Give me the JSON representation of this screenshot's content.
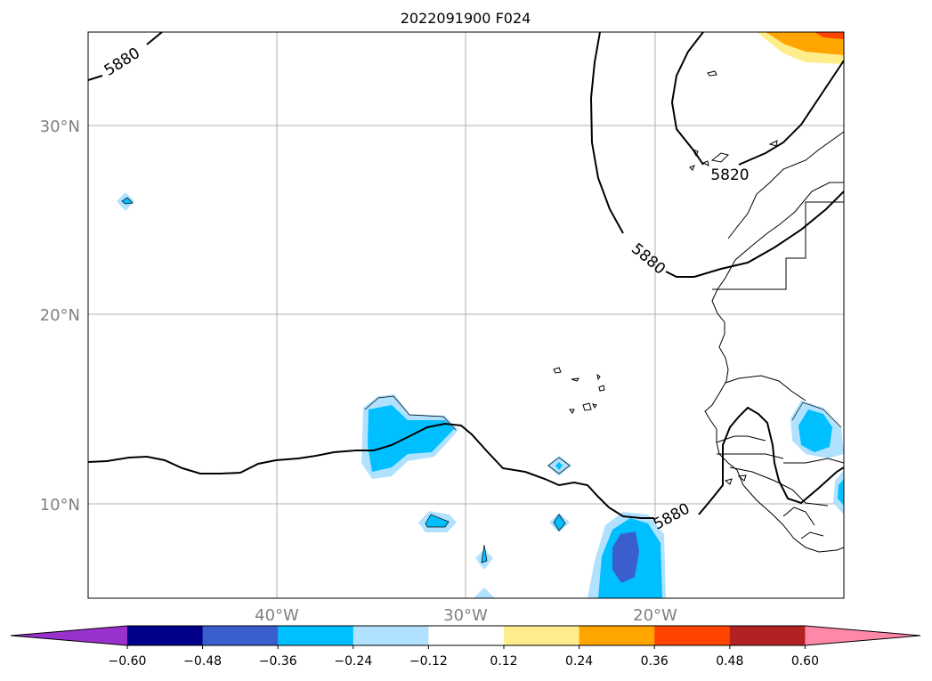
{
  "title": "2022091900 F024",
  "lat_labels": [
    "30°N",
    "20°N",
    "10°N"
  ],
  "lon_labels": [
    "40°W",
    "30°W",
    "20°W"
  ],
  "contour_labels": [
    "5880",
    "5880",
    "5820",
    "5880"
  ],
  "colorbar": {
    "tick_labels": [
      "−0.60",
      "−0.48",
      "−0.36",
      "−0.24",
      "−0.12",
      "0.12",
      "0.24",
      "0.36",
      "0.48",
      "0.60"
    ],
    "colors": [
      "#9932cc",
      "#00008b",
      "#3a5fcd",
      "#00bfff",
      "#b0e2ff",
      "#ffffff",
      "#ffec8b",
      "#ffa500",
      "#ff4500",
      "#b22222",
      "#ff87a8"
    ]
  },
  "colors": {
    "frame": "#000000",
    "grid": "#b0b0b0",
    "coast": "#000000"
  }
}
